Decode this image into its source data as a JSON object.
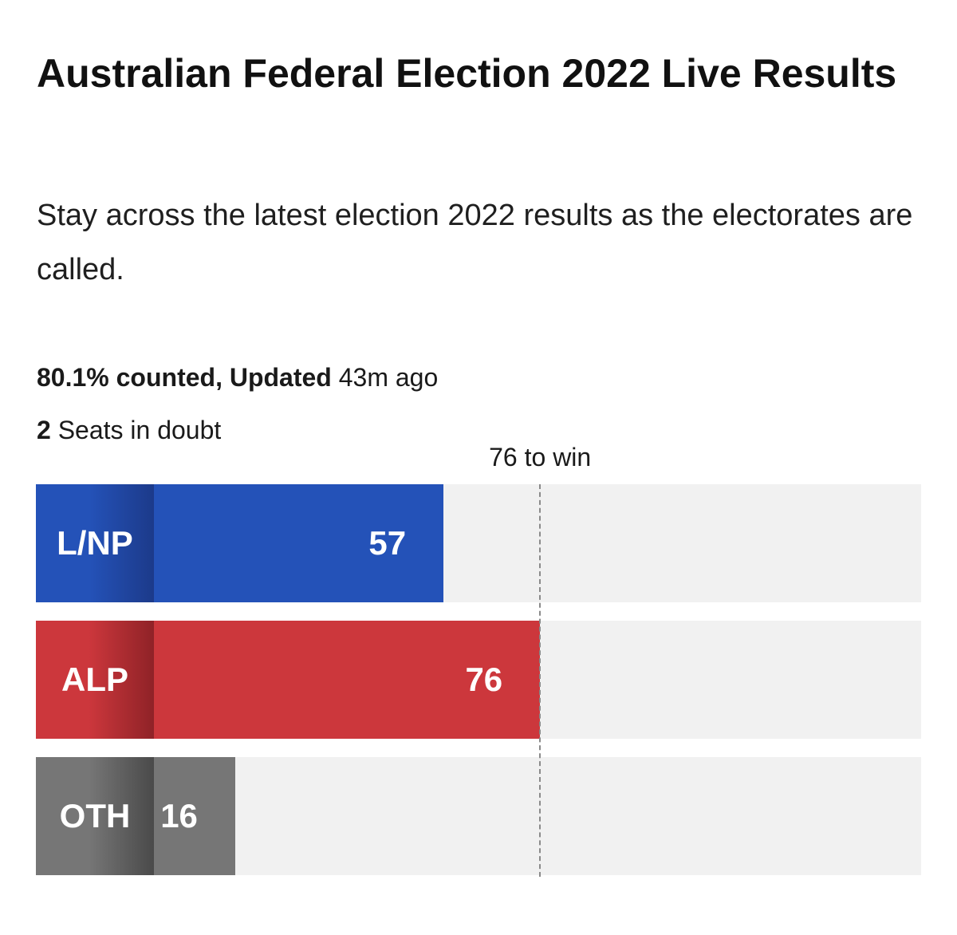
{
  "header": {
    "title": "Australian Federal Election 2022 Live Results",
    "subtitle": "Stay across the latest election 2022 results as the electorates are called."
  },
  "status": {
    "counted_bold": "80.1% counted, Updated",
    "updated_rest": "43m ago",
    "doubt_count": "2",
    "doubt_text": "Seats in doubt"
  },
  "chart_data": {
    "type": "bar",
    "orientation": "horizontal",
    "categories": [
      "L/NP",
      "ALP",
      "OTH"
    ],
    "values": [
      57,
      76,
      16
    ],
    "colors": {
      "L/NP": {
        "bar": "#2452b8",
        "chip_dark": "#1c3a8a"
      },
      "ALP": {
        "bar": "#cc373c",
        "chip_dark": "#8f2227"
      },
      "OTH": {
        "bar": "#767676",
        "chip_dark": "#4a4a4a"
      },
      "track": "#f1f1f1"
    },
    "threshold": {
      "value": 76,
      "label": "76 to win"
    },
    "xlim": [
      0,
      151
    ],
    "grid": false
  }
}
